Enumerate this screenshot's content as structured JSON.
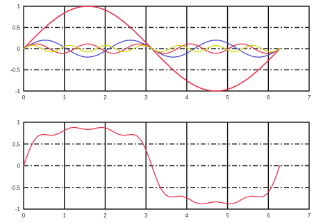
{
  "chart_data": [
    {
      "type": "line",
      "title": "",
      "xlabel": "",
      "ylabel": "",
      "xlim": [
        0,
        7
      ],
      "ylim": [
        -1,
        1
      ],
      "grid": true,
      "x_ticks": [
        0,
        1,
        2,
        3,
        4,
        5,
        6,
        7
      ],
      "y_ticks": [
        -1,
        -0.5,
        0,
        0.5,
        1
      ],
      "x_tick_labels": [
        "0",
        "1",
        "2",
        "3",
        "4",
        "5",
        "6",
        "7"
      ],
      "y_tick_labels": [
        "-1",
        "-0.5",
        "0",
        "0.5",
        "1"
      ],
      "x_samples": {
        "start": 0,
        "end": 6.2832,
        "count": 121
      },
      "series": [
        {
          "formula": "sin(x)",
          "amplitude": 1,
          "harmonic": 1,
          "color": "#e8304a"
        },
        {
          "formula": "sin(3x)/5",
          "amplitude": 0.2,
          "harmonic": 3,
          "color": "#4a4acc"
        },
        {
          "formula": "sin(5x)/9",
          "amplitude": 0.111,
          "harmonic": 5,
          "color": "#e8304a"
        },
        {
          "formula": "sin(7x)/13",
          "amplitude": 0.077,
          "harmonic": 7,
          "color": "#d4d40a"
        }
      ]
    },
    {
      "type": "line",
      "title": "",
      "xlabel": "",
      "ylabel": "",
      "xlim": [
        0,
        7
      ],
      "ylim": [
        -1,
        1
      ],
      "grid": true,
      "x_ticks": [
        0,
        1,
        2,
        3,
        4,
        5,
        6,
        7
      ],
      "y_ticks": [
        -1,
        -0.5,
        0,
        0.5,
        1
      ],
      "x_tick_labels": [
        "0",
        "1",
        "2",
        "3",
        "4",
        "5",
        "6",
        "7"
      ],
      "y_tick_labels": [
        "-1",
        "-0.5",
        "0",
        "0.5",
        "1"
      ],
      "x_samples": {
        "start": 0,
        "end": 6.2832,
        "count": 241
      },
      "series": [
        {
          "formula": "sum of the four harmonics",
          "harmonics": [
            [
              1,
              1
            ],
            [
              3,
              0.2
            ],
            [
              5,
              0.111
            ],
            [
              7,
              0.077
            ]
          ],
          "color": "#e8304a"
        }
      ]
    }
  ]
}
